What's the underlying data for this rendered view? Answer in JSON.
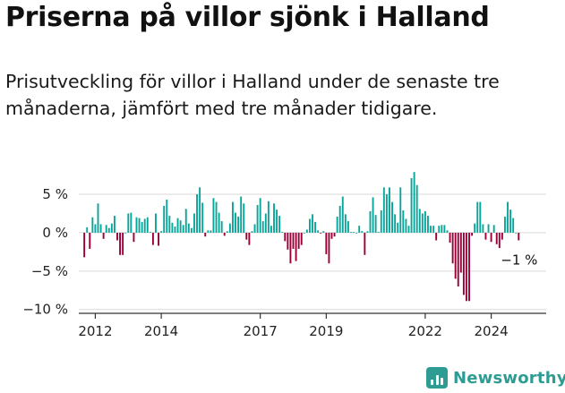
{
  "title": "Priserna på villor sjönk i Halland",
  "subtitle": "Prisutveckling för villor i Halland under de senaste tre månaderna, jämfört med tre månader tidigare.",
  "brand": "Newsworthy",
  "colors": {
    "positive": "#0aa59a",
    "negative": "#990038",
    "grid": "#d9d9d9",
    "brand": "#2f9c94"
  },
  "chart_data": {
    "type": "bar",
    "title": "Priserna på villor sjönk i Halland",
    "subtitle": "Prisutveckling för villor i Halland under de senaste tre månaderna, jämfört med tre månader tidigare.",
    "xlabel": "",
    "ylabel": "",
    "grid": true,
    "legend": "none",
    "x_start": "2011-09",
    "x_step": "month",
    "x_range": [
      "2011-07",
      "2025-09"
    ],
    "ylim": [
      -10.5,
      8.5
    ],
    "yticks": [
      5,
      0,
      -5,
      -10
    ],
    "ytick_labels": [
      "5 %",
      "0 %",
      "−5 %",
      "−10 %"
    ],
    "xticks": [
      "2012-01",
      "2014-01",
      "2017-01",
      "2019-01",
      "2022-01",
      "2024-01"
    ],
    "xtick_labels": [
      "2012",
      "2014",
      "2017",
      "2019",
      "2022",
      "2024"
    ],
    "end_label": "−1 %",
    "values": [
      -3.2,
      0.7,
      -2.1,
      2.0,
      1.1,
      3.8,
      1.1,
      -0.8,
      1.0,
      0.6,
      1.2,
      2.2,
      -1.0,
      -2.9,
      -2.9,
      0.0,
      2.5,
      2.6,
      -1.2,
      2.0,
      1.9,
      1.4,
      1.8,
      2.0,
      0.1,
      -1.6,
      2.5,
      -1.7,
      0.2,
      3.5,
      4.3,
      2.2,
      1.3,
      0.8,
      1.9,
      1.6,
      1.0,
      3.1,
      1.2,
      0.6,
      2.5,
      5.0,
      5.9,
      3.9,
      -0.5,
      0.3,
      0.3,
      4.5,
      4.0,
      2.6,
      1.5,
      -0.4,
      0.2,
      1.2,
      4.0,
      2.6,
      2.1,
      4.7,
      3.8,
      -0.9,
      -1.6,
      0.2,
      1.1,
      3.6,
      4.5,
      1.5,
      2.5,
      4.1,
      0.9,
      3.8,
      3.0,
      2.2,
      0.1,
      -1.1,
      -2.2,
      -4.0,
      -2.1,
      -3.7,
      -2.1,
      -1.6,
      0.0,
      0.4,
      1.8,
      2.4,
      1.4,
      0.3,
      -0.1,
      0.2,
      -2.8,
      -4.0,
      -0.8,
      -0.5,
      2.1,
      3.5,
      4.7,
      2.4,
      1.5,
      0.1,
      0.1,
      0.0,
      0.9,
      0.2,
      -2.9,
      0.2,
      2.8,
      4.6,
      2.3,
      0.1,
      2.9,
      5.9,
      5.0,
      5.9,
      4.0,
      2.4,
      1.3,
      5.9,
      2.9,
      1.8,
      0.9,
      7.1,
      7.9,
      6.2,
      3.1,
      2.5,
      2.8,
      2.2,
      0.9,
      0.9,
      -1.0,
      0.9,
      1.0,
      1.0,
      0.3,
      -1.3,
      -4.0,
      -6.0,
      -7.0,
      -5.2,
      -8.1,
      -8.9,
      -8.9,
      -0.4,
      1.2,
      4.0,
      4.0,
      1.1,
      -0.9,
      1.1,
      -1.2,
      1.0,
      -1.5,
      -2.0,
      -0.9,
      2.1,
      4.0,
      3.0,
      1.9,
      0.0,
      -1.0
    ]
  }
}
